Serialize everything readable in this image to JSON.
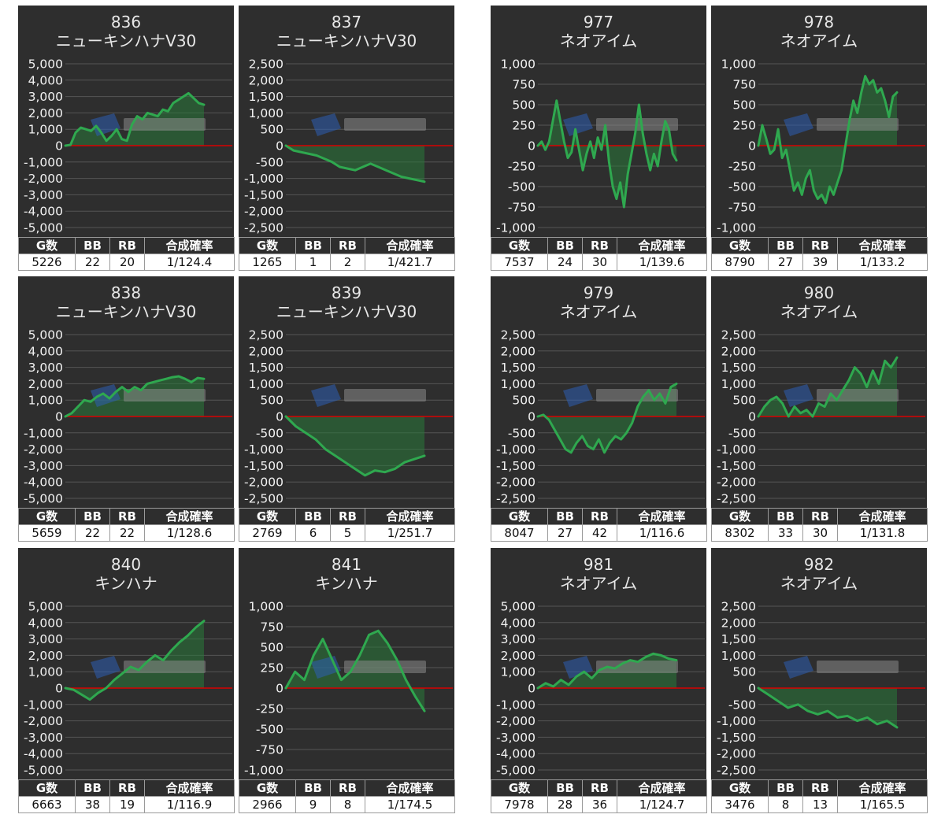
{
  "table_headers": [
    "G数",
    "BB",
    "RB",
    "合成確率"
  ],
  "colors": {
    "panel": "#2e2e2e",
    "line": "#2fa84f",
    "fill": "#2a7a3a",
    "zero_line": "#d90000",
    "grid": "#555555",
    "text": "#f2f2f2"
  },
  "chart_data": [
    {
      "type": "area",
      "number": "836",
      "name": "ニューキンハナV30",
      "ylim": [
        -5000,
        5000
      ],
      "ticks": [
        "5,000",
        "4,000",
        "3,000",
        "2,000",
        "1,000",
        "0",
        "-1,000",
        "-2,000",
        "-3,000",
        "-4,000",
        "-5,000"
      ],
      "values": [
        0,
        50,
        800,
        1100,
        1000,
        900,
        1200,
        800,
        300,
        600,
        1000,
        400,
        300,
        1300,
        1800,
        1600,
        2000,
        1900,
        1800,
        2200,
        2100,
        2600,
        2800,
        3000,
        3200,
        2900,
        2600,
        2500
      ],
      "stats": {
        "games": "5226",
        "bb": "22",
        "rb": "20",
        "rate": "1/124.4"
      }
    },
    {
      "type": "area",
      "number": "837",
      "name": "ニューキンハナV30",
      "ylim": [
        -2500,
        2500
      ],
      "ticks": [
        "2,500",
        "2,000",
        "1,500",
        "1,000",
        "500",
        "0",
        "-500",
        "-1,000",
        "-1,500",
        "-2,000",
        "-2,500"
      ],
      "values": [
        0,
        -150,
        -200,
        -250,
        -300,
        -400,
        -500,
        -650,
        -700,
        -750,
        -650,
        -550,
        -650,
        -750,
        -850,
        -950,
        -1000,
        -1050,
        -1100
      ],
      "stats": {
        "games": "1265",
        "bb": "1",
        "rb": "2",
        "rate": "1/421.7"
      }
    },
    {
      "type": "area",
      "number": "977",
      "name": "ネオアイム",
      "ylim": [
        -1000,
        1000
      ],
      "ticks": [
        "1,000",
        "750",
        "500",
        "250",
        "0",
        "-250",
        "-500",
        "-750",
        "-1,000"
      ],
      "values": [
        0,
        50,
        -50,
        50,
        300,
        550,
        300,
        50,
        -150,
        -80,
        200,
        -50,
        -300,
        -100,
        50,
        -150,
        100,
        -50,
        250,
        -200,
        -500,
        -650,
        -450,
        -750,
        -350,
        -100,
        150,
        500,
        150,
        -100,
        -300,
        -100,
        -250,
        50,
        300,
        200,
        -100,
        -180
      ],
      "stats": {
        "games": "7537",
        "bb": "24",
        "rb": "30",
        "rate": "1/139.6"
      }
    },
    {
      "type": "area",
      "number": "978",
      "name": "ネオアイム",
      "ylim": [
        -1000,
        1000
      ],
      "ticks": [
        "1,000",
        "750",
        "500",
        "250",
        "0",
        "-250",
        "-500",
        "-750",
        "-1,000"
      ],
      "values": [
        0,
        250,
        80,
        -100,
        -50,
        200,
        -150,
        -50,
        -300,
        -550,
        -450,
        -600,
        -400,
        -300,
        -550,
        -650,
        -600,
        -700,
        -500,
        -600,
        -450,
        -300,
        0,
        300,
        550,
        400,
        650,
        850,
        750,
        800,
        650,
        700,
        550,
        350,
        600,
        650
      ],
      "stats": {
        "games": "8790",
        "bb": "27",
        "rb": "39",
        "rate": "1/133.2"
      }
    },
    {
      "type": "area",
      "number": "838",
      "name": "ニューキンハナV30",
      "ylim": [
        -5000,
        5000
      ],
      "ticks": [
        "5,000",
        "4,000",
        "3,000",
        "2,000",
        "1,000",
        "0",
        "-1,000",
        "-2,000",
        "-3,000",
        "-4,000",
        "-5,000"
      ],
      "values": [
        0,
        200,
        600,
        1000,
        900,
        1200,
        1400,
        1100,
        1500,
        1800,
        1500,
        1800,
        1600,
        2000,
        2100,
        2200,
        2300,
        2400,
        2450,
        2300,
        2100,
        2350,
        2300
      ],
      "stats": {
        "games": "5659",
        "bb": "22",
        "rb": "22",
        "rate": "1/128.6"
      }
    },
    {
      "type": "area",
      "number": "839",
      "name": "ニューキンハナV30",
      "ylim": [
        -2500,
        2500
      ],
      "ticks": [
        "2,500",
        "2,000",
        "1,500",
        "1,000",
        "500",
        "0",
        "-500",
        "-1,000",
        "-1,500",
        "-2,000",
        "-2,500"
      ],
      "values": [
        0,
        -300,
        -500,
        -700,
        -1000,
        -1200,
        -1400,
        -1600,
        -1800,
        -1650,
        -1700,
        -1600,
        -1400,
        -1300,
        -1200
      ],
      "stats": {
        "games": "2769",
        "bb": "6",
        "rb": "5",
        "rate": "1/251.7"
      }
    },
    {
      "type": "area",
      "number": "979",
      "name": "ネオアイム",
      "ylim": [
        -2500,
        2500
      ],
      "ticks": [
        "2,500",
        "2,000",
        "1,500",
        "1,000",
        "500",
        "0",
        "-500",
        "-1,000",
        "-1,500",
        "-2,000",
        "-2,500"
      ],
      "values": [
        0,
        50,
        -100,
        -400,
        -700,
        -1000,
        -1100,
        -800,
        -600,
        -900,
        -1000,
        -700,
        -1100,
        -800,
        -600,
        -700,
        -500,
        -200,
        300,
        600,
        800,
        500,
        700,
        400,
        900,
        1000
      ],
      "stats": {
        "games": "8047",
        "bb": "27",
        "rb": "42",
        "rate": "1/116.6"
      }
    },
    {
      "type": "area",
      "number": "980",
      "name": "ネオアイム",
      "ylim": [
        -2500,
        2500
      ],
      "ticks": [
        "2,500",
        "2,000",
        "1,500",
        "1,000",
        "500",
        "0",
        "-500",
        "-1,000",
        "-1,500",
        "-2,000",
        "-2,500"
      ],
      "values": [
        0,
        300,
        500,
        600,
        400,
        0,
        300,
        100,
        200,
        0,
        400,
        300,
        700,
        500,
        800,
        1100,
        1500,
        1300,
        900,
        1400,
        1000,
        1700,
        1500,
        1800
      ],
      "stats": {
        "games": "8302",
        "bb": "33",
        "rb": "30",
        "rate": "1/131.8"
      }
    },
    {
      "type": "area",
      "number": "840",
      "name": "キンハナ",
      "ylim": [
        -5000,
        5000
      ],
      "ticks": [
        "5,000",
        "4,000",
        "3,000",
        "2,000",
        "1,000",
        "0",
        "-1,000",
        "-2,000",
        "-3,000",
        "-4,000",
        "-5,000"
      ],
      "values": [
        0,
        -100,
        -400,
        -700,
        -300,
        0,
        500,
        900,
        1300,
        1100,
        1600,
        2000,
        1700,
        2300,
        2800,
        3200,
        3700,
        4100
      ],
      "stats": {
        "games": "6663",
        "bb": "38",
        "rb": "19",
        "rate": "1/116.9"
      }
    },
    {
      "type": "area",
      "number": "841",
      "name": "キンハナ",
      "ylim": [
        -1000,
        1000
      ],
      "ticks": [
        "1,000",
        "750",
        "500",
        "250",
        "0",
        "-250",
        "-500",
        "-750",
        "-1,000"
      ],
      "values": [
        0,
        200,
        100,
        400,
        600,
        350,
        100,
        200,
        400,
        650,
        700,
        550,
        350,
        100,
        -100,
        -280
      ],
      "stats": {
        "games": "2966",
        "bb": "9",
        "rb": "8",
        "rate": "1/174.5"
      }
    },
    {
      "type": "area",
      "number": "981",
      "name": "ネオアイム",
      "ylim": [
        -5000,
        5000
      ],
      "ticks": [
        "5,000",
        "4,000",
        "3,000",
        "2,000",
        "1,000",
        "0",
        "-1,000",
        "-2,000",
        "-3,000",
        "-4,000",
        "-5,000"
      ],
      "values": [
        0,
        300,
        100,
        500,
        200,
        700,
        1000,
        600,
        1100,
        1300,
        1200,
        1500,
        1700,
        1600,
        1900,
        2100,
        2000,
        1800,
        1700
      ],
      "stats": {
        "games": "7978",
        "bb": "28",
        "rb": "36",
        "rate": "1/124.7"
      }
    },
    {
      "type": "area",
      "number": "982",
      "name": "ネオアイム",
      "ylim": [
        -2500,
        2500
      ],
      "ticks": [
        "2,500",
        "2,000",
        "1,500",
        "1,000",
        "500",
        "0",
        "-500",
        "-1,000",
        "-1,500",
        "-2,000",
        "-2,500"
      ],
      "values": [
        0,
        -200,
        -400,
        -600,
        -500,
        -700,
        -800,
        -700,
        -900,
        -850,
        -1000,
        -900,
        -1100,
        -1000,
        -1200
      ],
      "stats": {
        "games": "3476",
        "bb": "8",
        "rb": "13",
        "rate": "1/165.5"
      }
    }
  ]
}
